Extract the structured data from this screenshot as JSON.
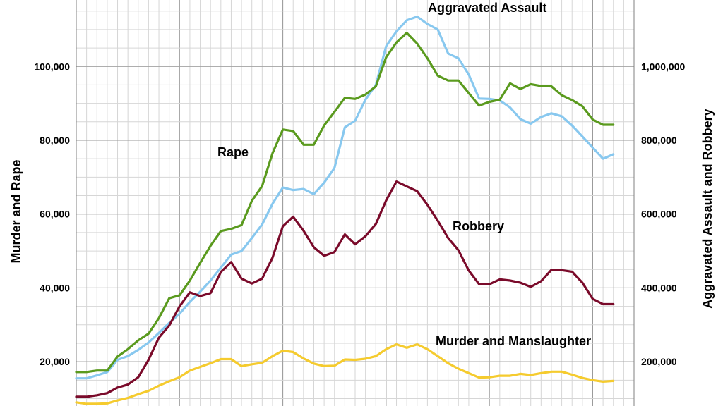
{
  "chart_data": {
    "type": "line",
    "left_axis": {
      "title": "Murder and Rape",
      "ylim": [
        8000,
        118000
      ],
      "ticks": [
        20000,
        40000,
        60000,
        80000,
        100000
      ],
      "tick_labels": [
        "20,000",
        "40,000",
        "60,000",
        "80,000",
        "100,000"
      ]
    },
    "right_axis": {
      "title": "Aggravated Assault and Robbery",
      "ylim": [
        80000,
        1180000
      ],
      "ticks": [
        200000,
        400000,
        600000,
        800000,
        1000000
      ],
      "tick_labels": [
        "200,000",
        "400,000",
        "600,000",
        "800,000",
        "1,000,000"
      ]
    },
    "x_start": 0,
    "x_end": 54,
    "grid": true,
    "series": [
      {
        "name": "Aggravated Assault",
        "axis": "right",
        "color": "#88c8ef",
        "values": [
          155000,
          155000,
          163000,
          172000,
          205000,
          215000,
          232000,
          252000,
          278000,
          305000,
          330000,
          362000,
          390000,
          420000,
          455000,
          490000,
          500000,
          535000,
          572000,
          628000,
          672000,
          665000,
          668000,
          654000,
          685000,
          725000,
          835000,
          853000,
          910000,
          950000,
          1055000,
          1095000,
          1125000,
          1135000,
          1115000,
          1100000,
          1035000,
          1022000,
          978000,
          913000,
          912000,
          908000,
          889000,
          857000,
          845000,
          863000,
          873000,
          865000,
          840000,
          810000,
          780000,
          750000,
          762000
        ]
      },
      {
        "name": "Rape",
        "axis": "left",
        "color": "#5a9a1e",
        "values": [
          17200,
          17200,
          17600,
          17600,
          21400,
          23400,
          25800,
          27600,
          31800,
          37200,
          38000,
          42000,
          46800,
          51400,
          55400,
          56000,
          57000,
          63600,
          67600,
          76500,
          82900,
          82500,
          78800,
          78800,
          84000,
          87700,
          91500,
          91200,
          92400,
          94600,
          102500,
          106500,
          109100,
          106200,
          102200,
          97500,
          96200,
          96200,
          92800,
          89400,
          90400,
          91000,
          95400,
          93900,
          95200,
          94700,
          94600,
          92200,
          90900,
          89200,
          85600,
          84200,
          84200
        ]
      },
      {
        "name": "Robbery",
        "axis": "right",
        "color": "#7a0a2a",
        "values": [
          105000,
          105000,
          109000,
          115000,
          130000,
          138000,
          158000,
          205000,
          265000,
          298000,
          350000,
          388000,
          378000,
          386000,
          443000,
          470000,
          425000,
          412000,
          425000,
          482000,
          567000,
          593000,
          555000,
          510000,
          487000,
          497000,
          545000,
          518000,
          540000,
          573000,
          637000,
          688000,
          675000,
          662000,
          625000,
          582000,
          535000,
          502000,
          447000,
          410000,
          410000,
          423000,
          420000,
          414000,
          403000,
          418000,
          449000,
          448000,
          444000,
          414000,
          370000,
          356000,
          356000
        ]
      },
      {
        "name": "Murder and Manslaughter",
        "axis": "left",
        "color": "#f5cb2e",
        "values": [
          9000,
          8600,
          8600,
          8700,
          9500,
          10200,
          11200,
          12100,
          13500,
          14700,
          15800,
          17600,
          18600,
          19600,
          20700,
          20700,
          18800,
          19300,
          19700,
          21500,
          23000,
          22600,
          20900,
          19500,
          18800,
          18900,
          20600,
          20500,
          20800,
          21500,
          23400,
          24700,
          23800,
          24700,
          23400,
          21500,
          19600,
          18100,
          16900,
          15700,
          15800,
          16200,
          16200,
          16700,
          16400,
          16900,
          17300,
          17300,
          16500,
          15600,
          15000,
          14600,
          14800
        ]
      }
    ],
    "labels": {
      "aggravated_assault": "Aggravated Assault",
      "rape": "Rape",
      "robbery": "Robbery",
      "murder": "Murder and Manslaughter"
    }
  }
}
